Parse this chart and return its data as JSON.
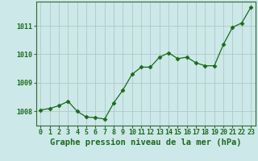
{
  "x": [
    0,
    1,
    2,
    3,
    4,
    5,
    6,
    7,
    8,
    9,
    10,
    11,
    12,
    13,
    14,
    15,
    16,
    17,
    18,
    19,
    20,
    21,
    22,
    23
  ],
  "y": [
    1008.05,
    1008.1,
    1008.2,
    1008.35,
    1008.0,
    1007.8,
    1007.78,
    1007.73,
    1008.3,
    1008.75,
    1009.3,
    1009.55,
    1009.55,
    1009.9,
    1010.05,
    1009.85,
    1009.9,
    1009.7,
    1009.6,
    1009.6,
    1010.35,
    1010.95,
    1011.1,
    1011.65
  ],
  "line_color": "#1a6b1a",
  "marker": "D",
  "marker_color": "#1a6b1a",
  "marker_size": 2.5,
  "bg_color": "#cce8e8",
  "grid_color": "#b0c8c8",
  "xlabel": "Graphe pression niveau de la mer (hPa)",
  "xlabel_color": "#1a6b1a",
  "xlabel_fontsize": 7.5,
  "tick_color": "#1a6b1a",
  "tick_fontsize": 6,
  "ylim": [
    1007.5,
    1011.85
  ],
  "yticks": [
    1008,
    1009,
    1010,
    1011
  ],
  "xticks": [
    0,
    1,
    2,
    3,
    4,
    5,
    6,
    7,
    8,
    9,
    10,
    11,
    12,
    13,
    14,
    15,
    16,
    17,
    18,
    19,
    20,
    21,
    22,
    23
  ],
  "spine_color": "#336633"
}
